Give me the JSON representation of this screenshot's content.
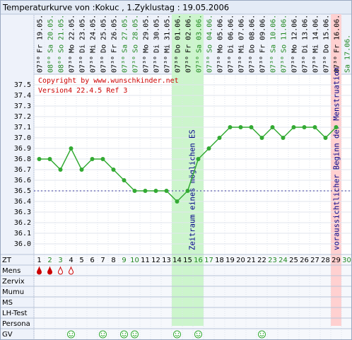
{
  "chart_data": {
    "type": "line",
    "title": "Temperaturkurve von :Kokuc , 1.Zyklustag : 19.05.2006",
    "categories": [
      "Fr 19.05.",
      "Sa 20.05.",
      "So 21.05.",
      "Mo 22.05.",
      "Di 23.05.",
      "Mi 24.05.",
      "Do 25.05.",
      "Fr 26.05.",
      "Sa 27.05.",
      "So 28.05.",
      "Mo 29.05.",
      "Di 30.05.",
      "Mi 31.05.",
      "Do 01.06.",
      "Fr 02.06.",
      "Sa 03.06.",
      "So 04.06.",
      "Mo 05.06.",
      "Di 06.06.",
      "Mi 07.06.",
      "Do 08.06.",
      "Fr 09.06.",
      "Sa 10.06.",
      "So 11.06.",
      "Mo 12.06.",
      "Di 13.06.",
      "Mi 14.06.",
      "Do 15.06.",
      "Fr 16.06.",
      "Sa 17.06."
    ],
    "times": [
      "07³⁰",
      "08⁰⁰",
      "08⁰⁰",
      "07³⁰",
      "07³⁰",
      "07³⁰",
      "07³⁰",
      "07³⁰",
      "07³⁰",
      "07³⁰",
      "07³⁰",
      "07³⁰",
      "07³⁰",
      "07³⁰",
      "07³⁰",
      "07³⁰",
      "07³⁰",
      "07³⁰",
      "07³⁰",
      "07³⁰",
      "07³⁰",
      "07³⁰",
      "07³⁰",
      "07³⁰",
      "07³⁰",
      "07³⁰",
      "07³⁰",
      "07³⁰",
      "07³⁰",
      null
    ],
    "zt": [
      1,
      2,
      3,
      4,
      5,
      6,
      7,
      8,
      9,
      10,
      11,
      12,
      13,
      14,
      15,
      16,
      17,
      18,
      19,
      20,
      21,
      22,
      23,
      24,
      25,
      26,
      27,
      28,
      29,
      30
    ],
    "weekend_days": [
      2,
      3,
      9,
      10,
      16,
      17,
      23,
      24,
      30
    ],
    "weekend_color": "#228822",
    "series": [
      {
        "name": "Temperatur",
        "color": "#33aa33",
        "values": [
          36.8,
          36.8,
          36.7,
          36.9,
          36.7,
          36.8,
          36.8,
          36.7,
          36.6,
          36.5,
          36.5,
          36.5,
          36.5,
          36.4,
          36.5,
          36.8,
          36.9,
          37.0,
          37.1,
          37.1,
          37.1,
          37.0,
          37.1,
          37.0,
          37.1,
          37.1,
          37.1,
          37.0,
          37.1,
          null
        ]
      }
    ],
    "ylim": [
      35.9,
      37.6
    ],
    "yticks": [
      37.5,
      37.4,
      37.3,
      37.2,
      37.1,
      {
        "value": 37.0,
        "label": "37.0"
      },
      36.9,
      36.8,
      36.7,
      36.6,
      36.5,
      36.4,
      36.3,
      36.2,
      36.1,
      {
        "value": 36.0,
        "label": "36.0"
      }
    ],
    "grid": true,
    "cover_line": 36.5,
    "copyright": "Copyright by www.wunschkinder.net",
    "version": "Version4 22.4.5 Ref 3",
    "fertile_window": {
      "from": 14,
      "to": 16,
      "label": "Zeitraum eines möglichen ES",
      "color": "#ccf5cc"
    },
    "menstruation": {
      "day": 29,
      "label": "voraussichtlicher Beginn der Menstruation",
      "color": "#ffd0d0"
    },
    "rows": [
      "ZT",
      "Mens",
      "Zervix",
      "Mumu",
      "MS",
      "LH-Test",
      "Persona",
      "GV"
    ],
    "mens": [
      {
        "day": 1,
        "kind": "filled"
      },
      {
        "day": 2,
        "kind": "filled"
      },
      {
        "day": 3,
        "kind": "outline"
      },
      {
        "day": 4,
        "kind": "outline"
      }
    ],
    "gv": [
      4,
      7,
      9,
      10,
      14,
      16,
      22
    ]
  }
}
